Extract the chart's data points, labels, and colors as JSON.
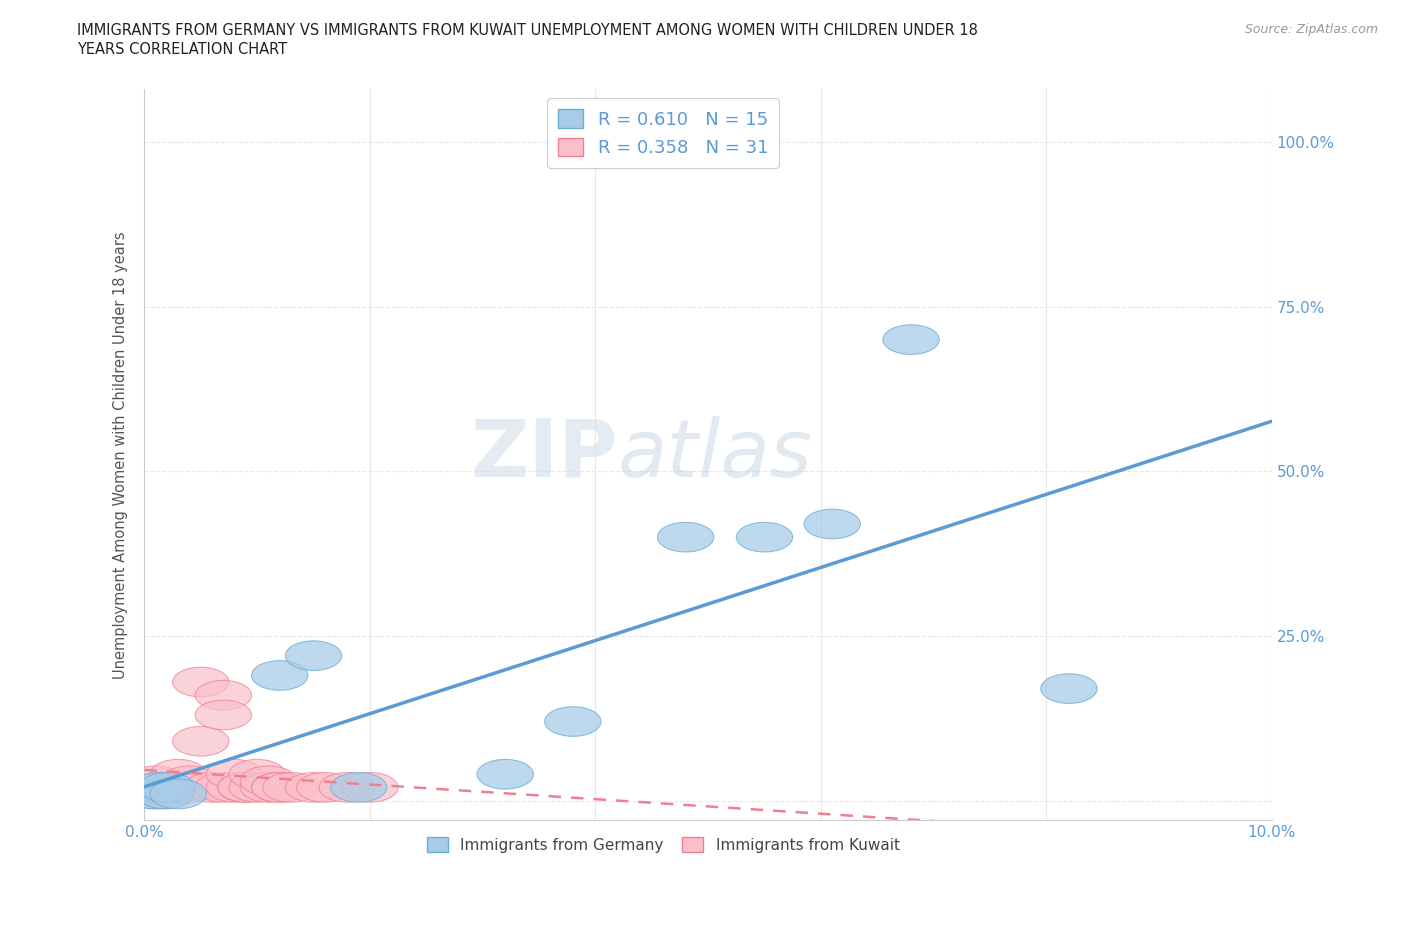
{
  "title_line1": "IMMIGRANTS FROM GERMANY VS IMMIGRANTS FROM KUWAIT UNEMPLOYMENT AMONG WOMEN WITH CHILDREN UNDER 18",
  "title_line2": "YEARS CORRELATION CHART",
  "source": "Source: ZipAtlas.com",
  "ylabel": "Unemployment Among Women with Children Under 18 years",
  "xlim": [
    0.0,
    0.1
  ],
  "ylim": [
    -0.03,
    1.08
  ],
  "xtick_positions": [
    0.0,
    0.02,
    0.04,
    0.06,
    0.08,
    0.1
  ],
  "xtick_labels": [
    "0.0%",
    "",
    "",
    "",
    "",
    "10.0%"
  ],
  "ytick_positions": [
    0.0,
    0.25,
    0.5,
    0.75,
    1.0
  ],
  "ytick_labels": [
    "",
    "25.0%",
    "50.0%",
    "75.0%",
    "100.0%"
  ],
  "germany_x": [
    0.0008,
    0.0012,
    0.0018,
    0.002,
    0.003,
    0.012,
    0.015,
    0.019,
    0.032,
    0.038,
    0.048,
    0.055,
    0.061,
    0.068,
    0.082
  ],
  "germany_y": [
    0.01,
    0.02,
    0.01,
    0.02,
    0.01,
    0.19,
    0.22,
    0.02,
    0.04,
    0.12,
    0.4,
    0.4,
    0.42,
    0.7,
    0.17
  ],
  "kuwait_x": [
    0.001,
    0.001,
    0.0015,
    0.002,
    0.002,
    0.003,
    0.003,
    0.003,
    0.004,
    0.004,
    0.005,
    0.005,
    0.006,
    0.007,
    0.007,
    0.007,
    0.008,
    0.008,
    0.009,
    0.009,
    0.01,
    0.01,
    0.011,
    0.011,
    0.012,
    0.012,
    0.013,
    0.015,
    0.016,
    0.018,
    0.02
  ],
  "kuwait_y": [
    0.01,
    0.03,
    0.02,
    0.01,
    0.02,
    0.02,
    0.04,
    0.02,
    0.02,
    0.03,
    0.09,
    0.18,
    0.02,
    0.16,
    0.13,
    0.02,
    0.02,
    0.04,
    0.02,
    0.02,
    0.02,
    0.04,
    0.02,
    0.03,
    0.02,
    0.02,
    0.02,
    0.02,
    0.02,
    0.02,
    0.02
  ],
  "germany_scatter_color": "#a8cce8",
  "germany_scatter_edge": "#6aaed6",
  "kuwait_scatter_color": "#f9c0cb",
  "kuwait_scatter_edge": "#f08090",
  "germany_line_color": "#5b9bd5",
  "kuwait_line_color": "#f08090",
  "R_germany": 0.61,
  "N_germany": 15,
  "R_kuwait": 0.358,
  "N_kuwait": 31,
  "watermark_zip": "ZIP",
  "watermark_atlas": "atlas",
  "background_color": "#ffffff",
  "grid_color": "#e8e8e8",
  "tick_color": "#5b9bd5",
  "ylabel_color": "#555555",
  "legend_label_color": "#5b9bd5"
}
